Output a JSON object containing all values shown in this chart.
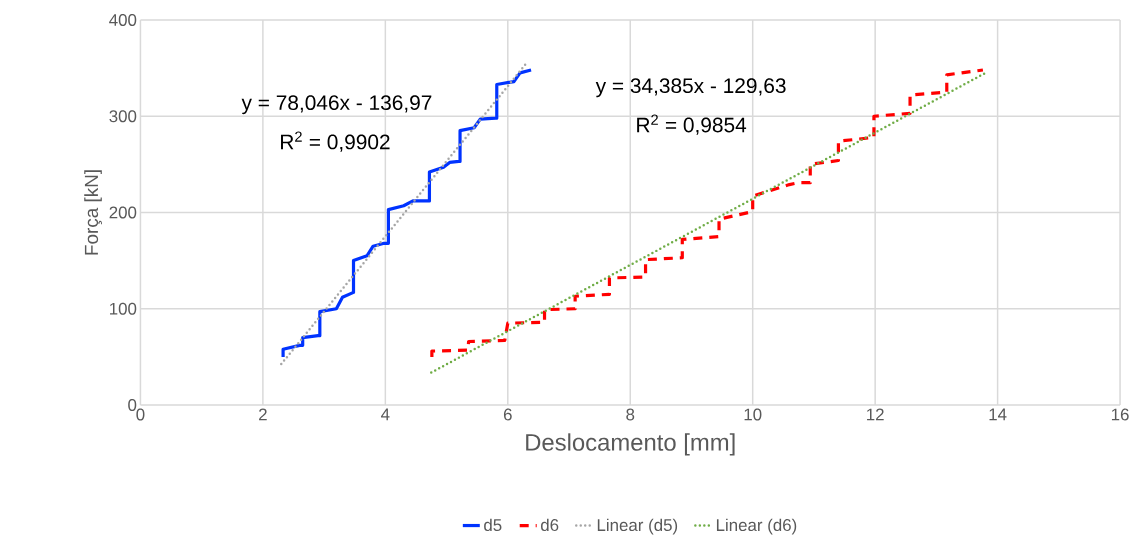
{
  "chart_data": {
    "type": "line",
    "xlabel": "Deslocamento [mm]",
    "ylabel": "Força [kN]",
    "xlim": [
      0,
      16
    ],
    "ylim": [
      0,
      400
    ],
    "xticks": [
      0,
      2,
      4,
      6,
      8,
      10,
      12,
      14,
      16
    ],
    "yticks": [
      0,
      100,
      200,
      300,
      400
    ],
    "grid": true,
    "legend": "bottom",
    "marker": "none",
    "series": [
      {
        "name": "d5",
        "color": "#0033ff",
        "line_style": "solid",
        "x": [
          2.33,
          2.33,
          2.6,
          2.65,
          2.65,
          2.9,
          2.93,
          2.93,
          3.2,
          3.3,
          3.48,
          3.48,
          3.7,
          3.8,
          3.98,
          4.05,
          4.05,
          4.3,
          4.45,
          4.7,
          4.72,
          4.72,
          4.95,
          5.05,
          5.2,
          5.22,
          5.22,
          5.45,
          5.55,
          5.8,
          5.82,
          5.82,
          6.1,
          6.2,
          6.38
        ],
        "values": [
          50,
          58,
          62,
          62,
          70,
          72,
          72,
          97,
          100,
          112,
          117,
          150,
          155,
          165,
          168,
          168,
          203,
          207,
          212,
          212,
          212,
          242,
          247,
          252,
          253,
          253,
          285,
          288,
          297,
          298,
          298,
          333,
          336,
          345,
          348
        ]
      },
      {
        "name": "d6",
        "color": "#ff0000",
        "line_style": "dashed",
        "x": [
          4.76,
          4.76,
          5.35,
          5.36,
          5.95,
          6.0,
          6.6,
          6.6,
          7.1,
          7.1,
          7.66,
          7.66,
          8.25,
          8.25,
          8.85,
          8.85,
          9.45,
          9.45,
          10.0,
          10.0,
          10.6,
          10.75,
          10.94,
          10.94,
          11.4,
          11.4,
          11.98,
          11.98,
          12.57,
          12.57,
          13.17,
          13.17,
          13.76
        ],
        "values": [
          50,
          56,
          57,
          66,
          67,
          85,
          86,
          99,
          100,
          113,
          115,
          132,
          133,
          151,
          153,
          172,
          175,
          193,
          201,
          217,
          229,
          231,
          231,
          250,
          254,
          274,
          278,
          300,
          303,
          322,
          325,
          343,
          348
        ]
      },
      {
        "name": "Linear (d5)",
        "color": "#a6a6a6",
        "line_style": "dotted",
        "x": [
          2.3,
          6.3
        ],
        "values": [
          42.5,
          354.7
        ]
      },
      {
        "name": "Linear (d6)",
        "color": "#70ad47",
        "line_style": "dotted",
        "x": [
          4.75,
          13.8
        ],
        "values": [
          33.7,
          344.9
        ]
      }
    ],
    "annotations": [
      "y = 78,046x - 136,97",
      "R$^{2}$ = 0,9902",
      "y = 34,385x - 129,63",
      "R$^{2}$ = 0,9854"
    ]
  }
}
